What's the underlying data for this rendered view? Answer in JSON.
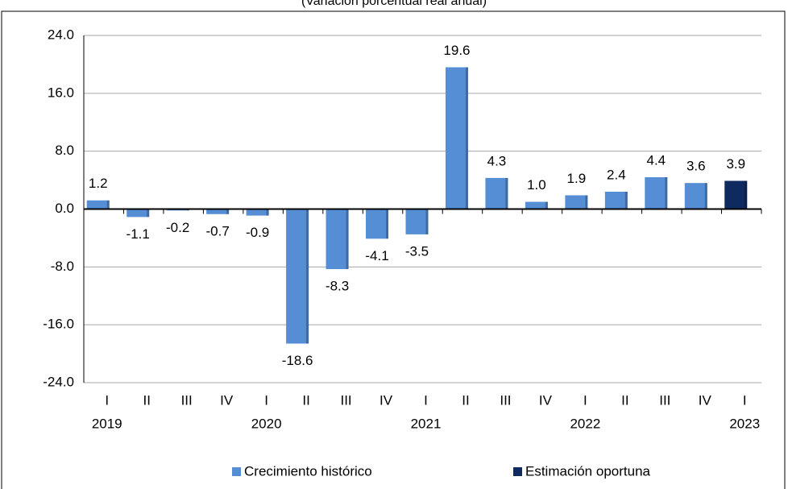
{
  "chart_data": {
    "type": "bar",
    "subtitle": "(Variación porcentual real anual)",
    "categories": [
      "I",
      "II",
      "III",
      "IV",
      "I",
      "II",
      "III",
      "IV",
      "I",
      "II",
      "III",
      "IV",
      "I",
      "II",
      "III",
      "IV",
      "I"
    ],
    "year_labels": [
      "2019",
      null,
      null,
      null,
      "2020",
      null,
      null,
      null,
      "2021",
      null,
      null,
      null,
      "2022",
      null,
      null,
      null,
      "2023"
    ],
    "series": [
      {
        "name": "Crecimiento histórico",
        "color": "#558ed5",
        "values": [
          1.2,
          -1.1,
          -0.2,
          -0.7,
          -0.9,
          -18.6,
          -8.3,
          -4.1,
          -3.5,
          19.6,
          4.3,
          1.0,
          1.9,
          2.4,
          4.4,
          3.6,
          null
        ],
        "value_labels": [
          "1.2",
          "-1.1",
          "-0.2",
          "-0.7",
          "-0.9",
          "-18.6",
          "-8.3",
          "-4.1",
          "-3.5",
          "19.6",
          "4.3",
          "1.0",
          "1.9",
          "2.4",
          "4.4",
          "3.6",
          null
        ]
      },
      {
        "name": "Estimación oportuna",
        "color": "#0f2a5e",
        "values": [
          null,
          null,
          null,
          null,
          null,
          null,
          null,
          null,
          null,
          null,
          null,
          null,
          null,
          null,
          null,
          null,
          3.9
        ],
        "value_labels": [
          null,
          null,
          null,
          null,
          null,
          null,
          null,
          null,
          null,
          null,
          null,
          null,
          null,
          null,
          null,
          null,
          "3.9"
        ]
      }
    ],
    "ylim": [
      -24,
      24
    ],
    "yticks": [
      {
        "value": -24,
        "label": "-24.0"
      },
      {
        "value": -16,
        "label": "-16.0"
      },
      {
        "value": -8,
        "label": "-8.0"
      },
      {
        "value": 0,
        "label": "0.0"
      },
      {
        "value": 8,
        "label": "8.0"
      },
      {
        "value": 16,
        "label": "16.0"
      },
      {
        "value": 24,
        "label": "24.0"
      }
    ],
    "grid": true,
    "legend": "bottom"
  }
}
